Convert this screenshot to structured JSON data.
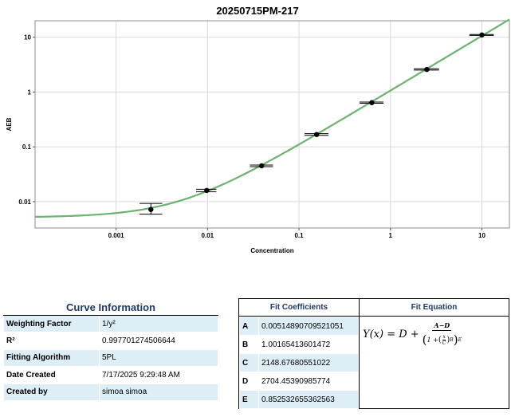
{
  "chart_data": {
    "type": "scatter",
    "title": "20250715PM-217",
    "xlabel": "Concentration",
    "ylabel": "AEB",
    "xscale": "log",
    "yscale": "log",
    "xlim": [
      0.00013,
      20
    ],
    "ylim": [
      0.0033,
      20
    ],
    "grid": true,
    "x_ticks": [
      {
        "value": 0.001,
        "label": "0.001"
      },
      {
        "value": 0.01,
        "label": "0.01"
      },
      {
        "value": 0.1,
        "label": "0.1"
      },
      {
        "value": 1,
        "label": "1"
      },
      {
        "value": 10,
        "label": "10"
      }
    ],
    "y_ticks": [
      {
        "value": 0.01,
        "label": "0.01"
      },
      {
        "value": 0.1,
        "label": "0.1"
      },
      {
        "value": 1,
        "label": "1"
      },
      {
        "value": 10,
        "label": "10"
      }
    ],
    "points": [
      {
        "x": 0.0024,
        "y": 0.0072,
        "err_y": [
          0.0059,
          0.0093
        ],
        "err_x": [
          0.0018,
          0.0032
        ]
      },
      {
        "x": 0.0098,
        "y": 0.016,
        "err_y": [
          0.0152,
          0.0168
        ],
        "err_x": [
          0.0075,
          0.0125
        ]
      },
      {
        "x": 0.039,
        "y": 0.045,
        "err_y": [
          0.0435,
          0.0465
        ],
        "err_x": [
          0.029,
          0.052
        ]
      },
      {
        "x": 0.156,
        "y": 0.168,
        "err_y": [
          0.162,
          0.174
        ],
        "err_x": [
          0.115,
          0.21
        ]
      },
      {
        "x": 0.625,
        "y": 0.64,
        "err_y": [
          0.625,
          0.655
        ],
        "err_x": [
          0.46,
          0.84
        ]
      },
      {
        "x": 2.5,
        "y": 2.58,
        "err_y": [
          2.52,
          2.66
        ],
        "err_x": [
          1.8,
          3.4
        ]
      },
      {
        "x": 10,
        "y": 11.0,
        "err_y": [
          10.8,
          11.2
        ],
        "err_x": [
          7.3,
          13.5
        ]
      }
    ],
    "curve": {
      "model": "5PL",
      "A": 0.00514890709521051,
      "B": 1.00165413601472,
      "C": 2148.67680551022,
      "D": 2704.45390985774,
      "E": 0.852532655362563
    },
    "colors": {
      "curve": "#6ab46e",
      "points": "#000000",
      "grid": "#d9d9d9"
    }
  },
  "curve_info": {
    "header": "Curve Information",
    "rows": [
      {
        "label": "Weighting Factor",
        "value": "1/y²"
      },
      {
        "label": "R²",
        "value": "0.997701274506644"
      },
      {
        "label": "Fitting Algorithm",
        "value": "5PL"
      },
      {
        "label": "Date Created",
        "value": "7/17/2025 9:29:48 AM"
      },
      {
        "label": "Created by",
        "value": "simoa simoa"
      }
    ]
  },
  "fit_coefficients": {
    "header": "Fit Coefficients",
    "rows": [
      {
        "label": "A",
        "value": "0.00514890709521051"
      },
      {
        "label": "B",
        "value": "1.00165413601472"
      },
      {
        "label": "C",
        "value": "2148.67680551022"
      },
      {
        "label": "D",
        "value": "2704.45390985774"
      },
      {
        "label": "E",
        "value": "0.852532655362563"
      }
    ]
  },
  "fit_equation": {
    "header": "Fit Equation",
    "lhs": "Y(x) = D +",
    "numerator": "A−D",
    "den_one": "1 +",
    "den_x": "x",
    "den_c": "C",
    "exp_b": "B",
    "exp_e": "E"
  }
}
